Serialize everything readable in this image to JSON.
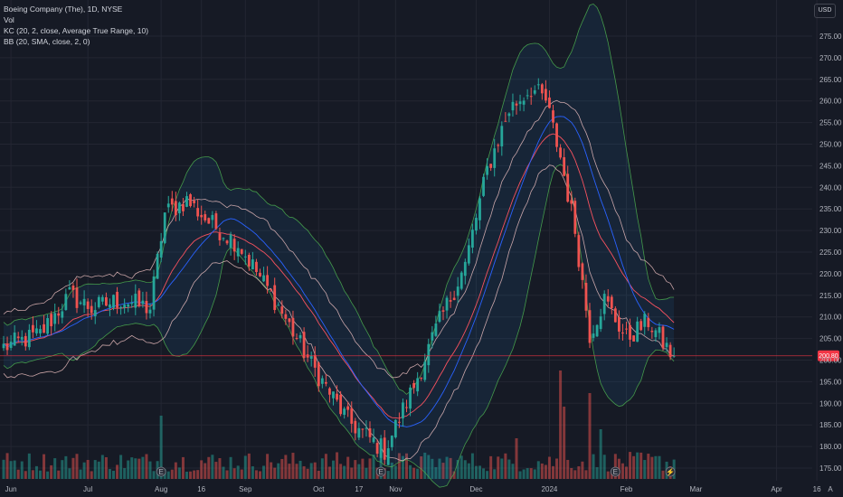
{
  "legend": {
    "symbol": "Boeing Company (The), 1D, NYSE",
    "volume": "Vol",
    "kc": "KC (20, 2, close, Average True Range, 10)",
    "bb": "BB (20, SMA, close, 2, 0)"
  },
  "currency": "USD",
  "chart_data": {
    "type": "candlestick",
    "y_ticks": [
      175,
      180,
      185,
      190,
      195,
      200,
      205,
      210,
      215,
      220,
      225,
      230,
      235,
      240,
      245,
      250,
      255,
      260,
      265,
      270,
      275
    ],
    "ylim": [
      173,
      280
    ],
    "x_ticks": [
      {
        "label": "Jun",
        "idx": 2
      },
      {
        "label": "Jul",
        "idx": 23
      },
      {
        "label": "Aug",
        "idx": 43
      },
      {
        "label": "16",
        "idx": 54
      },
      {
        "label": "Sep",
        "idx": 66
      },
      {
        "label": "Oct",
        "idx": 86
      },
      {
        "label": "17",
        "idx": 97
      },
      {
        "label": "Nov",
        "idx": 107
      },
      {
        "label": "Dec",
        "idx": 129
      },
      {
        "label": "2024",
        "idx": 149
      },
      {
        "label": "Feb",
        "idx": 170
      },
      {
        "label": "Mar",
        "idx": 189
      },
      {
        "label": "Apr",
        "idx": 211
      },
      {
        "label": "16",
        "idx": 222
      }
    ],
    "close_keypoints": [
      [
        0,
        203
      ],
      [
        10,
        206
      ],
      [
        18,
        215
      ],
      [
        24,
        212
      ],
      [
        32,
        214
      ],
      [
        40,
        212
      ],
      [
        44,
        234
      ],
      [
        50,
        237
      ],
      [
        56,
        232
      ],
      [
        64,
        227
      ],
      [
        74,
        214
      ],
      [
        84,
        199
      ],
      [
        94,
        186
      ],
      [
        104,
        179
      ],
      [
        112,
        194
      ],
      [
        118,
        207
      ],
      [
        126,
        222
      ],
      [
        132,
        244
      ],
      [
        138,
        258
      ],
      [
        144,
        263
      ],
      [
        148,
        260
      ],
      [
        152,
        247
      ],
      [
        156,
        230
      ],
      [
        160,
        206
      ],
      [
        164,
        214
      ],
      [
        170,
        205
      ],
      [
        176,
        209
      ],
      [
        180,
        204
      ],
      [
        183,
        200.5
      ]
    ],
    "last_price": 201,
    "last_price_label": "200.80",
    "colors": {
      "up": "#26a69a",
      "down": "#ef5350",
      "bb_basis": "#2962ff",
      "kc_basis": "#f7525f",
      "kc_bands": "#f5c6c6",
      "bb_bands": "#4caf50",
      "bb_fill": "#2196f3",
      "price_line": "#f23645"
    },
    "markers": [
      {
        "idx": 43,
        "symbol": "E"
      },
      {
        "idx": 103,
        "symbol": "E"
      },
      {
        "idx": 167,
        "symbol": "E"
      },
      {
        "idx": 182,
        "symbol": "⚡"
      }
    ]
  }
}
